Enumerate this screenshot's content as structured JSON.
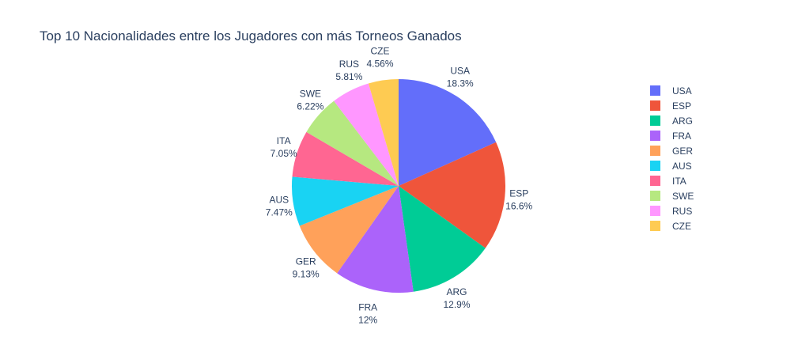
{
  "chart_data": {
    "type": "pie",
    "title": "Top 10 Nacionalidades entre los Jugadores con más Torneos Ganados",
    "labels": [
      "USA",
      "ESP",
      "ARG",
      "FRA",
      "GER",
      "AUS",
      "ITA",
      "SWE",
      "RUS",
      "CZE"
    ],
    "percent_text": [
      "18.3%",
      "16.6%",
      "12.9%",
      "12%",
      "9.13%",
      "7.47%",
      "7.05%",
      "6.22%",
      "5.81%",
      "4.56%"
    ],
    "values": [
      18.3,
      16.6,
      12.9,
      12.0,
      9.13,
      7.47,
      7.05,
      6.22,
      5.81,
      4.56
    ],
    "colors": [
      "#636efa",
      "#ef553b",
      "#00cc96",
      "#ab63fa",
      "#ffa15a",
      "#19d3f3",
      "#ff6692",
      "#b6e880",
      "#ff97ff",
      "#fecb52"
    ],
    "legend_placement": "right",
    "direction": "clockwise",
    "start": "top"
  }
}
